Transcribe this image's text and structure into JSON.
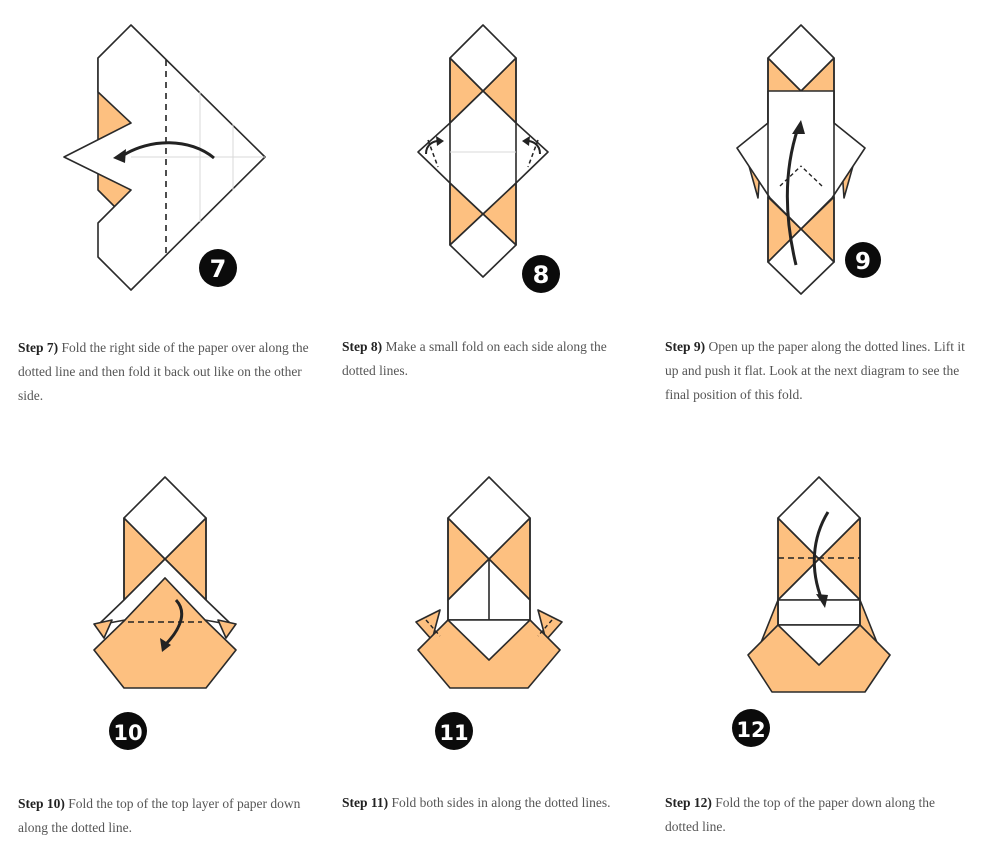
{
  "colors": {
    "paper_orange": "#FDC080",
    "line": "#2a2a2a",
    "crease": "#d8d8d8",
    "badge": "#0b0b0b"
  },
  "steps": [
    {
      "number": "7",
      "label": "Step 7)",
      "text": " Fold the right side of the paper over along the dotted line and then fold it back out like on the other side."
    },
    {
      "number": "8",
      "label": "Step 8)",
      "text": " Make a small fold on each side along the dotted lines."
    },
    {
      "number": "9",
      "label": "Step 9)",
      "text": " Open up the paper along the dotted lines. Lift it up and push it flat. Look at the next diagram to see the final position of this fold."
    },
    {
      "number": "10",
      "label": "Step 10)",
      "text": " Fold the top of the top layer of paper down along the dotted line."
    },
    {
      "number": "11",
      "label": "Step 11)",
      "text": " Fold both sides in along the dotted lines."
    },
    {
      "number": "12",
      "label": "Step 12)",
      "text": " Fold the top of the paper down along the dotted line."
    }
  ]
}
